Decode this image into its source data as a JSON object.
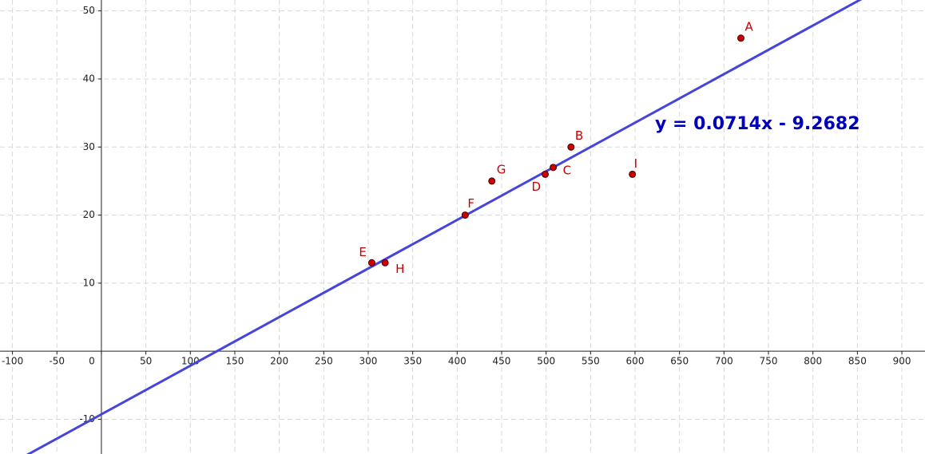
{
  "chart_data": {
    "type": "scatter",
    "labels": [
      "A",
      "B",
      "C",
      "D",
      "E",
      "F",
      "G",
      "H",
      "I"
    ],
    "x": [
      719,
      528,
      508,
      499,
      304,
      409,
      439,
      319,
      597
    ],
    "values": [
      46,
      30,
      27,
      26,
      13,
      20,
      25,
      13,
      26
    ],
    "color": "#cc0000",
    "line": {
      "slope": 0.0714,
      "intercept": -9.2682,
      "label": "y = 0.0714x - 9.2682",
      "color": "#4545dd"
    },
    "xlim": [
      -114,
      926
    ],
    "ylim": [
      -15.1,
      51.6
    ],
    "xticks": [
      -100,
      -50,
      0,
      50,
      100,
      150,
      200,
      250,
      300,
      350,
      400,
      450,
      500,
      550,
      600,
      650,
      700,
      750,
      800,
      850,
      900
    ],
    "yticks": [
      -10,
      10,
      20,
      30,
      40,
      50
    ],
    "grid": true
  }
}
